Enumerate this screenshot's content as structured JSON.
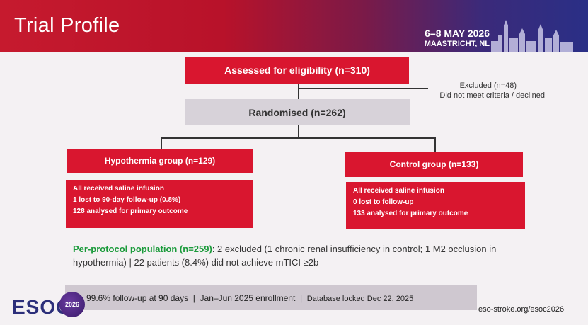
{
  "header": {
    "title": "Trial Profile",
    "date": "6–8 MAY 2026",
    "location": "MAASTRICHT, NL"
  },
  "flow": {
    "assessed": "Assessed for eligibility (n=310)",
    "excluded_count": "Excluded (n=48)",
    "excluded_reason": "Did not meet criteria / declined",
    "randomised": "Randomised (n=262)",
    "hypothermia": {
      "title": "Hypothermia group (n=129)",
      "lines": [
        "All received saline infusion",
        "1 lost to 90-day follow-up (0.8%)",
        "128 analysed for primary outcome"
      ]
    },
    "control": {
      "title": "Control group (n=133)",
      "lines": [
        "All received saline infusion",
        "0 lost to follow-up",
        "133 analysed for primary outcome"
      ]
    }
  },
  "per_protocol": {
    "label": "Per-protocol population (n=259)",
    "text": ": 2 excluded (1 chronic renal insufficiency in control; 1 M2 occlusion in hypothermia)  |  22 patients (8.4%) did not achieve mTICI ≥2b"
  },
  "footer": {
    "followup": "99.6% follow-up at 90 days",
    "sep1": "  |  ",
    "enrollment": "Jan–Jun 2025 enrollment",
    "sep2": "  |  ",
    "locked": "Database locked Dec 22, 2025",
    "logo": "ESOC",
    "badge": "2026",
    "url": "eso-stroke.org/esoc2026"
  },
  "colors": {
    "red": "#d9162f",
    "grey": "#d7d2d9",
    "green": "#1a9a3a",
    "navy": "#2c2f7a"
  }
}
